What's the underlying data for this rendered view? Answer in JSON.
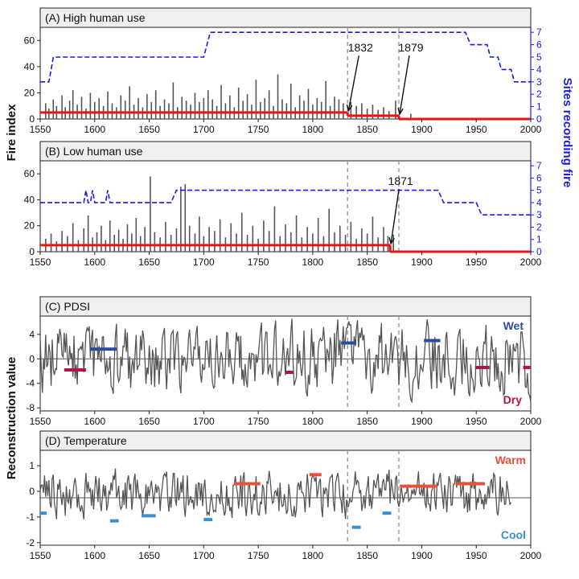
{
  "figure": {
    "fire_ylabel": "Fire index",
    "sites_ylabel": "Sites recording fire",
    "recon_ylabel": "Reconstruction value"
  },
  "colors": {
    "fire_bars": "#555555",
    "fire_mean": "#ee1111",
    "sites_line": "#1a1ae6",
    "sites_axis": "#1a1ae6",
    "recon_line": "#555555",
    "wet": "#2b4c9b",
    "dry": "#b3143f",
    "warm": "#e8503a",
    "cool": "#3b8fd0",
    "dashed_marker": "#9a9a9a",
    "panel_header": "#efefef"
  },
  "chart_data": [
    {
      "type": "bar",
      "title": "(A) High human use",
      "xlim": [
        1550,
        2000
      ],
      "xticks": [
        1550,
        1600,
        1650,
        1700,
        1750,
        1800,
        1850,
        1900,
        1950,
        2000
      ],
      "ylim": [
        0,
        70
      ],
      "yticks": [
        0,
        20,
        40,
        60
      ],
      "y2lim": [
        0,
        7.4
      ],
      "y2ticks": [
        0,
        1,
        2,
        3,
        4,
        5,
        6,
        7
      ],
      "fire_index": [
        [
          1555,
          12
        ],
        [
          1558,
          8
        ],
        [
          1562,
          15
        ],
        [
          1565,
          10
        ],
        [
          1570,
          18
        ],
        [
          1573,
          9
        ],
        [
          1577,
          14
        ],
        [
          1580,
          22
        ],
        [
          1584,
          11
        ],
        [
          1588,
          17
        ],
        [
          1592,
          8
        ],
        [
          1596,
          20
        ],
        [
          1600,
          13
        ],
        [
          1604,
          16
        ],
        [
          1608,
          10
        ],
        [
          1612,
          21
        ],
        [
          1616,
          12
        ],
        [
          1620,
          9
        ],
        [
          1624,
          18
        ],
        [
          1628,
          14
        ],
        [
          1632,
          25
        ],
        [
          1636,
          11
        ],
        [
          1640,
          16
        ],
        [
          1644,
          9
        ],
        [
          1648,
          19
        ],
        [
          1652,
          13
        ],
        [
          1656,
          22
        ],
        [
          1660,
          10
        ],
        [
          1664,
          15
        ],
        [
          1668,
          12
        ],
        [
          1672,
          28
        ],
        [
          1676,
          9
        ],
        [
          1680,
          17
        ],
        [
          1684,
          14
        ],
        [
          1688,
          11
        ],
        [
          1692,
          20
        ],
        [
          1696,
          13
        ],
        [
          1700,
          16
        ],
        [
          1704,
          22
        ],
        [
          1708,
          15
        ],
        [
          1712,
          10
        ],
        [
          1716,
          26
        ],
        [
          1720,
          12
        ],
        [
          1724,
          18
        ],
        [
          1728,
          9
        ],
        [
          1732,
          24
        ],
        [
          1736,
          14
        ],
        [
          1740,
          19
        ],
        [
          1744,
          11
        ],
        [
          1748,
          30
        ],
        [
          1752,
          13
        ],
        [
          1756,
          16
        ],
        [
          1760,
          22
        ],
        [
          1764,
          10
        ],
        [
          1768,
          34
        ],
        [
          1772,
          15
        ],
        [
          1776,
          12
        ],
        [
          1780,
          27
        ],
        [
          1784,
          9
        ],
        [
          1788,
          18
        ],
        [
          1792,
          14
        ],
        [
          1796,
          23
        ],
        [
          1800,
          11
        ],
        [
          1804,
          16
        ],
        [
          1808,
          13
        ],
        [
          1812,
          29
        ],
        [
          1816,
          10
        ],
        [
          1820,
          17
        ],
        [
          1824,
          15
        ],
        [
          1828,
          12
        ],
        [
          1835,
          13
        ],
        [
          1840,
          10
        ],
        [
          1845,
          12
        ],
        [
          1850,
          8
        ],
        [
          1855,
          11
        ],
        [
          1860,
          7
        ],
        [
          1865,
          9
        ],
        [
          1870,
          6
        ],
        [
          1876,
          14
        ],
        [
          1890,
          4
        ]
      ],
      "mean_segments": [
        {
          "x": [
            1550,
            1832
          ],
          "y": 5
        },
        {
          "x": [
            1832,
            1879
          ],
          "y": 2.5
        },
        {
          "x": [
            1879,
            2000
          ],
          "y": 0
        }
      ],
      "sites_recording": [
        [
          1550,
          3
        ],
        [
          1558,
          3
        ],
        [
          1560,
          4
        ],
        [
          1562,
          5
        ],
        [
          1565,
          5
        ],
        [
          1700,
          5
        ],
        [
          1706,
          7
        ],
        [
          1940,
          7
        ],
        [
          1945,
          6
        ],
        [
          1960,
          6
        ],
        [
          1963,
          5
        ],
        [
          1970,
          5
        ],
        [
          1973,
          4
        ],
        [
          1982,
          4
        ],
        [
          1985,
          3
        ],
        [
          2000,
          3
        ]
      ],
      "annotations": [
        {
          "label": "1832",
          "x": 1832
        },
        {
          "label": "1879",
          "x": 1879
        }
      ],
      "dashed_years": [
        1832,
        1879
      ]
    },
    {
      "type": "bar",
      "title": "(B) Low human use",
      "xlim": [
        1550,
        2000
      ],
      "xticks": [
        1550,
        1600,
        1650,
        1700,
        1750,
        1800,
        1850,
        1900,
        1950,
        2000
      ],
      "ylim": [
        0,
        70
      ],
      "yticks": [
        0,
        20,
        40,
        60
      ],
      "y2lim": [
        0,
        7.4
      ],
      "y2ticks": [
        0,
        1,
        2,
        3,
        4,
        5,
        6,
        7
      ],
      "fire_index": [
        [
          1555,
          10
        ],
        [
          1560,
          14
        ],
        [
          1565,
          8
        ],
        [
          1570,
          16
        ],
        [
          1575,
          12
        ],
        [
          1580,
          22
        ],
        [
          1585,
          9
        ],
        [
          1590,
          18
        ],
        [
          1594,
          28
        ],
        [
          1598,
          11
        ],
        [
          1602,
          15
        ],
        [
          1606,
          20
        ],
        [
          1610,
          9
        ],
        [
          1614,
          24
        ],
        [
          1618,
          13
        ],
        [
          1622,
          17
        ],
        [
          1626,
          10
        ],
        [
          1630,
          21
        ],
        [
          1634,
          14
        ],
        [
          1638,
          26
        ],
        [
          1642,
          12
        ],
        [
          1646,
          19
        ],
        [
          1651,
          58
        ],
        [
          1655,
          15
        ],
        [
          1660,
          11
        ],
        [
          1665,
          23
        ],
        [
          1670,
          13
        ],
        [
          1675,
          18
        ],
        [
          1679,
          50
        ],
        [
          1683,
          52
        ],
        [
          1687,
          20
        ],
        [
          1692,
          14
        ],
        [
          1696,
          27
        ],
        [
          1700,
          12
        ],
        [
          1705,
          19
        ],
        [
          1710,
          16
        ],
        [
          1715,
          25
        ],
        [
          1720,
          11
        ],
        [
          1725,
          22
        ],
        [
          1730,
          14
        ],
        [
          1735,
          30
        ],
        [
          1740,
          13
        ],
        [
          1745,
          20
        ],
        [
          1750,
          10
        ],
        [
          1755,
          24
        ],
        [
          1760,
          16
        ],
        [
          1765,
          35
        ],
        [
          1770,
          12
        ],
        [
          1775,
          21
        ],
        [
          1780,
          15
        ],
        [
          1785,
          28
        ],
        [
          1790,
          11
        ],
        [
          1795,
          19
        ],
        [
          1800,
          14
        ],
        [
          1805,
          26
        ],
        [
          1810,
          12
        ],
        [
          1815,
          33
        ],
        [
          1820,
          15
        ],
        [
          1825,
          20
        ],
        [
          1830,
          13
        ],
        [
          1835,
          23
        ],
        [
          1840,
          10
        ],
        [
          1845,
          18
        ],
        [
          1850,
          14
        ],
        [
          1855,
          27
        ],
        [
          1860,
          11
        ],
        [
          1865,
          19
        ],
        [
          1869,
          12
        ],
        [
          1874,
          13
        ]
      ],
      "mean_segments": [
        {
          "x": [
            1550,
            1871
          ],
          "y": 5
        },
        {
          "x": [
            1871,
            2000
          ],
          "y": 0
        }
      ],
      "sites_recording": [
        [
          1550,
          4
        ],
        [
          1590,
          4
        ],
        [
          1592,
          5
        ],
        [
          1594,
          4
        ],
        [
          1596,
          4
        ],
        [
          1598,
          5
        ],
        [
          1600,
          4
        ],
        [
          1610,
          4
        ],
        [
          1612,
          5
        ],
        [
          1614,
          4
        ],
        [
          1670,
          4
        ],
        [
          1675,
          5
        ],
        [
          1915,
          5
        ],
        [
          1920,
          4
        ],
        [
          1950,
          4
        ],
        [
          1955,
          3
        ],
        [
          2000,
          3
        ]
      ],
      "annotations": [
        {
          "label": "1871",
          "x": 1871
        }
      ],
      "dashed_years": [
        1832,
        1879
      ]
    },
    {
      "type": "line",
      "title": "(C) PDSI",
      "xlim": [
        1550,
        2000
      ],
      "xticks": [
        1550,
        1600,
        1650,
        1700,
        1750,
        1800,
        1850,
        1900,
        1950,
        2000
      ],
      "ylim": [
        -8.5,
        7
      ],
      "yticks": [
        -8,
        -4,
        0,
        4
      ],
      "legend": {
        "high": "Wet",
        "low": "Dry"
      },
      "periods": [
        {
          "x": [
            1572,
            1592
          ],
          "y": -1.8,
          "kind": "dry"
        },
        {
          "x": [
            1596,
            1620
          ],
          "y": 1.6,
          "kind": "wet"
        },
        {
          "x": [
            1775,
            1782
          ],
          "y": -2.2,
          "kind": "dry"
        },
        {
          "x": [
            1826,
            1840
          ],
          "y": 2.6,
          "kind": "wet"
        },
        {
          "x": [
            1902,
            1917
          ],
          "y": 3.0,
          "kind": "wet"
        },
        {
          "x": [
            1949,
            1962
          ],
          "y": -1.4,
          "kind": "dry"
        },
        {
          "x": [
            1993,
            2000
          ],
          "y": -1.4,
          "kind": "dry"
        }
      ],
      "dashed_years": [
        1832,
        1879
      ]
    },
    {
      "type": "line",
      "title": "(D) Temperature",
      "xlim": [
        1550,
        2000
      ],
      "xticks": [
        1550,
        1600,
        1650,
        1700,
        1750,
        1800,
        1850,
        1900,
        1950,
        2000
      ],
      "ylim": [
        -2.1,
        1.6
      ],
      "yticks": [
        -2,
        -1,
        0,
        1
      ],
      "baseline": -0.25,
      "legend": {
        "high": "Warm",
        "low": "Cool"
      },
      "periods": [
        {
          "x": [
            1550,
            1556
          ],
          "y": -0.85,
          "kind": "cool"
        },
        {
          "x": [
            1614,
            1622
          ],
          "y": -1.15,
          "kind": "cool"
        },
        {
          "x": [
            1643,
            1656
          ],
          "y": -0.95,
          "kind": "cool"
        },
        {
          "x": [
            1700,
            1708
          ],
          "y": -1.1,
          "kind": "cool"
        },
        {
          "x": [
            1728,
            1752
          ],
          "y": 0.3,
          "kind": "warm"
        },
        {
          "x": [
            1797,
            1808
          ],
          "y": 0.65,
          "kind": "warm"
        },
        {
          "x": [
            1836,
            1844
          ],
          "y": -1.4,
          "kind": "cool"
        },
        {
          "x": [
            1864,
            1872
          ],
          "y": -0.85,
          "kind": "cool"
        },
        {
          "x": [
            1880,
            1914
          ],
          "y": 0.2,
          "kind": "warm"
        },
        {
          "x": [
            1931,
            1958
          ],
          "y": 0.3,
          "kind": "warm"
        }
      ],
      "dashed_years": [
        1832,
        1879
      ]
    }
  ]
}
